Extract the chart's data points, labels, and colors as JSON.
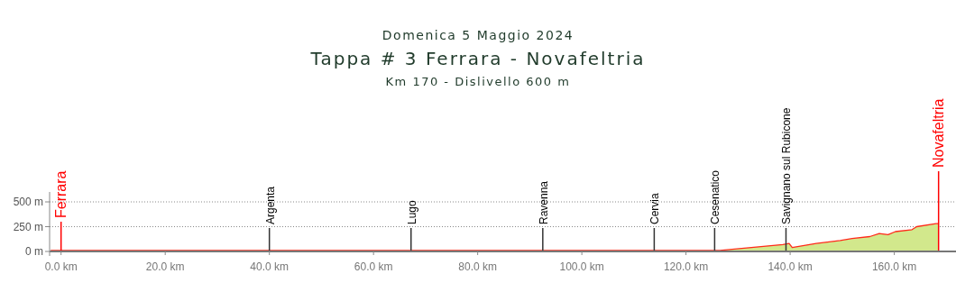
{
  "chart_data": {
    "type": "area",
    "title": "Tappa # 3 Ferrara - Novafeltria",
    "subtitle": "Domenica 5 Maggio 2024",
    "annotations": [
      "Km 170 - Dislivello 600 m"
    ],
    "series": [
      {
        "color": "#d2e88c",
        "x": [
          -2,
          0,
          40,
          80,
          120,
          126.5,
          138.6,
          139.8,
          140.4,
          145,
          149.6,
          151.9,
          155.3,
          157.1,
          158.8,
          160.2,
          163.4,
          164.3,
          168,
          168.5
        ],
        "values": [
          10,
          10,
          10,
          10,
          10,
          10,
          70,
          80,
          40,
          80,
          110,
          130,
          150,
          180,
          170,
          200,
          220,
          250,
          280,
          280
        ]
      }
    ],
    "xlim": [
      -2.2,
      171.5
    ],
    "xticks": [
      {
        "value": 0,
        "label": "0.0 km"
      },
      {
        "value": 20,
        "label": "20.0 km"
      },
      {
        "value": 40,
        "label": "40.0 km"
      },
      {
        "value": 60,
        "label": "60.0 km"
      },
      {
        "value": 80,
        "label": "80.0 km"
      },
      {
        "value": 100,
        "label": "100.0 km"
      },
      {
        "value": 120,
        "label": "120.0 km"
      },
      {
        "value": 140,
        "label": "140.0 km"
      },
      {
        "value": 160,
        "label": "160.0 km"
      }
    ],
    "ylim": [
      0,
      600
    ],
    "yticks": [
      {
        "value": 0,
        "label": "0 m"
      },
      {
        "value": 250,
        "label": "250 m"
      },
      {
        "value": 500,
        "label": "500 m"
      }
    ],
    "grid": "y",
    "line_style": "solid",
    "ref_lines": [
      {
        "axis": "x",
        "value": 0,
        "label": "Ferrara",
        "color": "#ff0000"
      },
      {
        "axis": "x",
        "value": 40,
        "label": "Argenta",
        "color": "#333333"
      },
      {
        "axis": "x",
        "value": 67.2,
        "label": "Lugo",
        "color": "#333333"
      },
      {
        "axis": "x",
        "value": 92.5,
        "label": "Ravenna",
        "color": "#333333"
      },
      {
        "axis": "x",
        "value": 113.9,
        "label": "Cervia",
        "color": "#333333"
      },
      {
        "axis": "x",
        "value": 125.5,
        "label": "Cesenatico",
        "color": "#333333"
      },
      {
        "axis": "x",
        "value": 139.2,
        "label": "Savignano sul Rubicone",
        "color": "#333333"
      },
      {
        "axis": "x",
        "value": 168.5,
        "label": "Novafeltria",
        "color": "#ff0000"
      }
    ]
  }
}
